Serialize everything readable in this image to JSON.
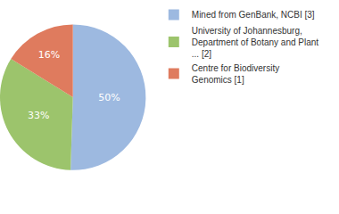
{
  "chart_data": {
    "type": "pie",
    "categories": [
      "Mined from GenBank, NCBI [3]",
      "University of Johannesburg, Department of Botany and Plant ... [2]",
      "Centre for Biodiversity Genomics [1]"
    ],
    "values": [
      50,
      33,
      16
    ],
    "value_labels": [
      "50%",
      "33%",
      "16%"
    ],
    "colors": [
      "#9db9e0",
      "#9cc46c",
      "#df7b5e"
    ],
    "data_labels": true,
    "legend": "top-right"
  }
}
